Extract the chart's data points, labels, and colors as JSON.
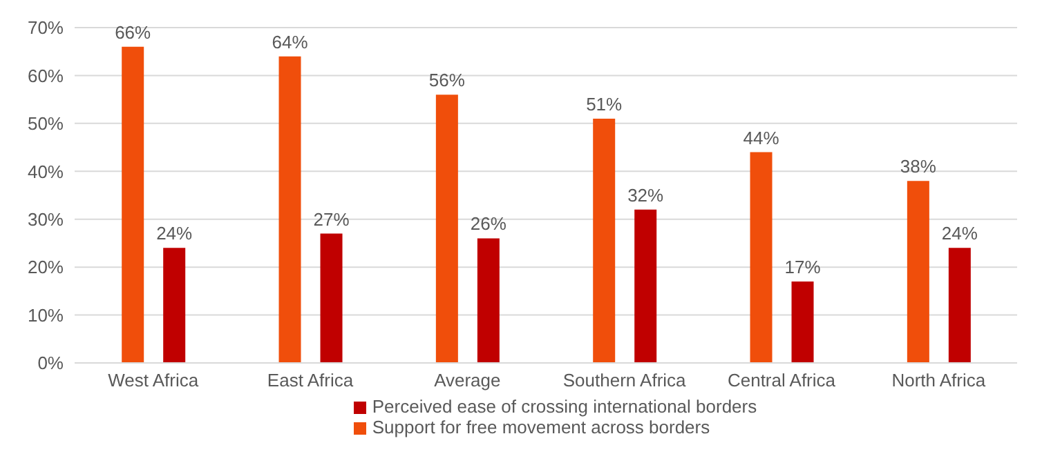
{
  "chart_data": {
    "type": "bar",
    "categories": [
      "West Africa",
      "East Africa",
      "Average",
      "Southern Africa",
      "Central Africa",
      "North Africa"
    ],
    "series": [
      {
        "name": "Support for free movement across borders",
        "color": "#f04e0b",
        "values": [
          66,
          64,
          56,
          51,
          44,
          38
        ],
        "value_labels": [
          "66%",
          "64%",
          "56%",
          "51%",
          "44%",
          "38%"
        ]
      },
      {
        "name": "Perceived ease of crossing international borders",
        "color": "#c00000",
        "values": [
          24,
          27,
          26,
          32,
          17,
          24
        ],
        "value_labels": [
          "24%",
          "27%",
          "26%",
          "32%",
          "17%",
          "24%"
        ]
      }
    ],
    "ylim": [
      0,
      70
    ],
    "yticks": [
      {
        "value": 0,
        "label": "0%"
      },
      {
        "value": 10,
        "label": "10%"
      },
      {
        "value": 20,
        "label": "20%"
      },
      {
        "value": 30,
        "label": "30%"
      },
      {
        "value": 40,
        "label": "40%"
      },
      {
        "value": 50,
        "label": "50%"
      },
      {
        "value": 60,
        "label": "60%"
      },
      {
        "value": 70,
        "label": "70%"
      }
    ],
    "grid": "y",
    "legend": "bottom"
  }
}
